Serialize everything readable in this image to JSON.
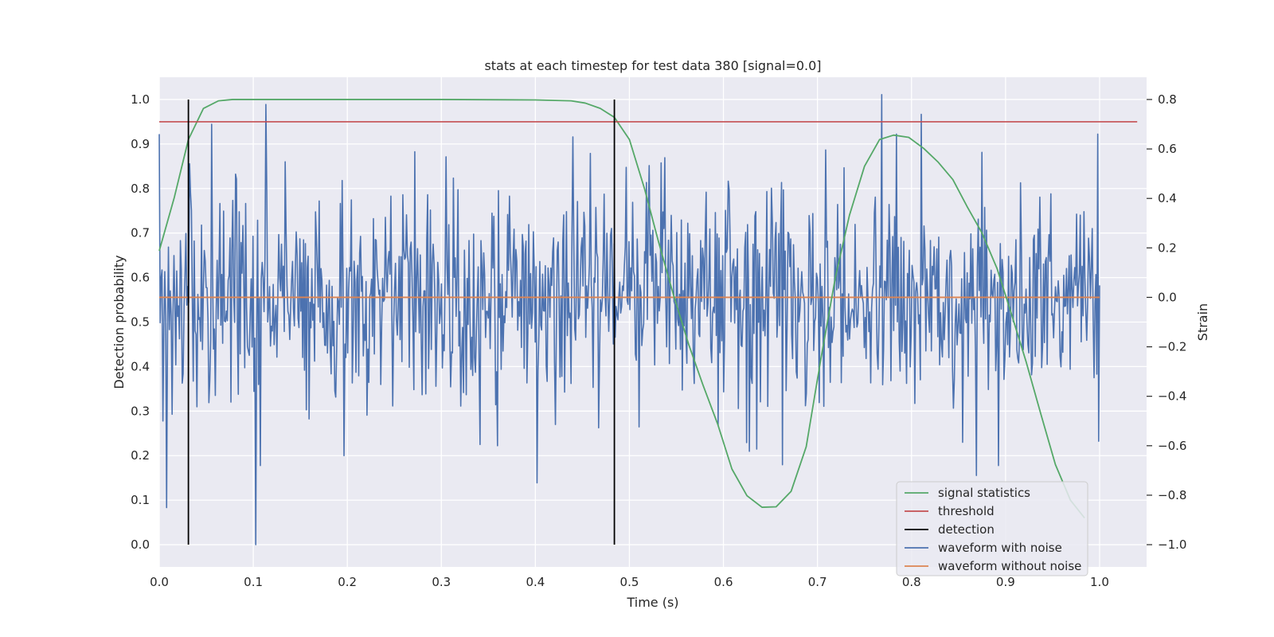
{
  "chart_data": {
    "type": "line",
    "title": "stats at each timestep for test data 380 [signal=0.0]",
    "xlabel": "Time (s)",
    "ylabel": "Detection probability",
    "ylabel_right": "Strain",
    "xlim": [
      0.0,
      1.05
    ],
    "ylim": [
      -0.05,
      1.05
    ],
    "ylim_right": [
      -1.09,
      0.89
    ],
    "xticks": [
      "0.0",
      "0.1",
      "0.2",
      "0.3",
      "0.4",
      "0.5",
      "0.6",
      "0.7",
      "0.8",
      "0.9",
      "1.0"
    ],
    "yticks": [
      "0.0",
      "0.1",
      "0.2",
      "0.3",
      "0.4",
      "0.5",
      "0.6",
      "0.7",
      "0.8",
      "0.9",
      "1.0"
    ],
    "yticks_right": [
      "−1.0",
      "−0.8",
      "−0.6",
      "−0.4",
      "−0.2",
      "0.0",
      "0.2",
      "0.4",
      "0.6",
      "0.8"
    ],
    "grid": true,
    "background": "#EAEAF2",
    "legend_position": "lower-right",
    "series": [
      {
        "name": "signal statistics",
        "color": "#55A868",
        "axis": "left",
        "x": [
          0.0,
          0.016,
          0.031,
          0.047,
          0.063,
          0.078,
          0.094,
          0.2,
          0.3,
          0.4,
          0.438,
          0.453,
          0.469,
          0.484,
          0.5,
          0.516,
          0.531,
          0.547,
          0.563,
          0.578,
          0.594,
          0.609,
          0.625,
          0.641,
          0.656,
          0.672,
          0.688,
          0.703,
          0.719,
          0.734,
          0.75,
          0.766,
          0.781,
          0.797,
          0.813,
          0.828,
          0.844,
          0.859,
          0.875,
          0.891,
          0.906,
          0.922,
          0.938,
          0.953,
          0.969,
          0.984
        ],
        "y": [
          0.66,
          0.78,
          0.91,
          0.98,
          0.997,
          1.0,
          1.0,
          1.0,
          1.0,
          0.999,
          0.997,
          0.992,
          0.98,
          0.96,
          0.91,
          0.8,
          0.68,
          0.56,
          0.45,
          0.36,
          0.27,
          0.17,
          0.11,
          0.084,
          0.085,
          0.12,
          0.22,
          0.41,
          0.6,
          0.74,
          0.85,
          0.91,
          0.92,
          0.915,
          0.89,
          0.86,
          0.82,
          0.76,
          0.7,
          0.62,
          0.52,
          0.41,
          0.29,
          0.18,
          0.1,
          0.06
        ]
      },
      {
        "name": "threshold",
        "color": "#C44E52",
        "axis": "left",
        "x": [
          0.0,
          1.04
        ],
        "y": [
          0.95,
          0.95
        ]
      },
      {
        "name": "detection",
        "color": "#000000",
        "axis": "left",
        "x": [
          0.031,
          0.484
        ],
        "y_range": [
          0.0,
          1.0
        ]
      },
      {
        "name": "waveform with noise",
        "color": "#4C72B0",
        "axis": "right",
        "x_start": 0.0,
        "x_end": 1.0,
        "noise_std": 0.22,
        "spikes": [
          {
            "x": 0.008,
            "y": -0.85
          },
          {
            "x": 0.004,
            "y": -0.5
          },
          {
            "x": 0.032,
            "y": 0.54
          },
          {
            "x": 0.056,
            "y": 0.7
          },
          {
            "x": 0.103,
            "y": -1.0
          },
          {
            "x": 0.108,
            "y": -0.68
          },
          {
            "x": 0.113,
            "y": 0.78
          },
          {
            "x": 0.196,
            "y": -0.64
          },
          {
            "x": 0.36,
            "y": -0.6
          },
          {
            "x": 0.402,
            "y": -0.75
          },
          {
            "x": 0.768,
            "y": 0.82
          },
          {
            "x": 0.81,
            "y": 0.74
          },
          {
            "x": 0.869,
            "y": -0.72
          },
          {
            "x": 0.998,
            "y": 0.66
          }
        ]
      },
      {
        "name": "waveform without noise",
        "color": "#DD8452",
        "axis": "right",
        "x": [
          0.0,
          1.0
        ],
        "y": [
          0.0,
          0.0
        ]
      }
    ]
  }
}
